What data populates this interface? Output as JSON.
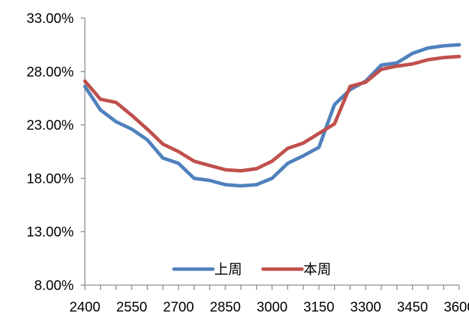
{
  "chart_data": {
    "type": "line",
    "title": "",
    "xlabel": "",
    "ylabel": "",
    "x": [
      2400,
      2450,
      2500,
      2550,
      2600,
      2650,
      2700,
      2750,
      2800,
      2850,
      2900,
      2950,
      3000,
      3050,
      3100,
      3150,
      3200,
      3250,
      3300,
      3350,
      3400,
      3450,
      3500,
      3550,
      3600
    ],
    "xticks": [
      "2400",
      "2550",
      "2700",
      "2850",
      "3000",
      "3150",
      "3300",
      "3450",
      "3600"
    ],
    "yticks": [
      "8.00%",
      "13.00%",
      "18.00%",
      "23.00%",
      "28.00%",
      "33.00%"
    ],
    "ylim": [
      8,
      33
    ],
    "grid": false,
    "legend_position": "bottom",
    "series": [
      {
        "name": "上周",
        "color": "#4f81bd",
        "values": [
          26.6,
          24.4,
          23.3,
          22.6,
          21.6,
          19.9,
          19.4,
          18.0,
          17.8,
          17.4,
          17.3,
          17.4,
          18.0,
          19.4,
          20.1,
          20.9,
          24.9,
          26.3,
          27.1,
          28.6,
          28.8,
          29.7,
          30.2,
          30.4,
          30.5
        ]
      },
      {
        "name": "本周",
        "color": "#c0504d",
        "values": [
          27.1,
          25.4,
          25.1,
          23.9,
          22.6,
          21.2,
          20.5,
          19.6,
          19.2,
          18.8,
          18.7,
          18.9,
          19.6,
          20.8,
          21.3,
          22.2,
          23.1,
          26.6,
          27.0,
          28.2,
          28.5,
          28.7,
          29.1,
          29.3,
          29.4
        ]
      }
    ]
  }
}
